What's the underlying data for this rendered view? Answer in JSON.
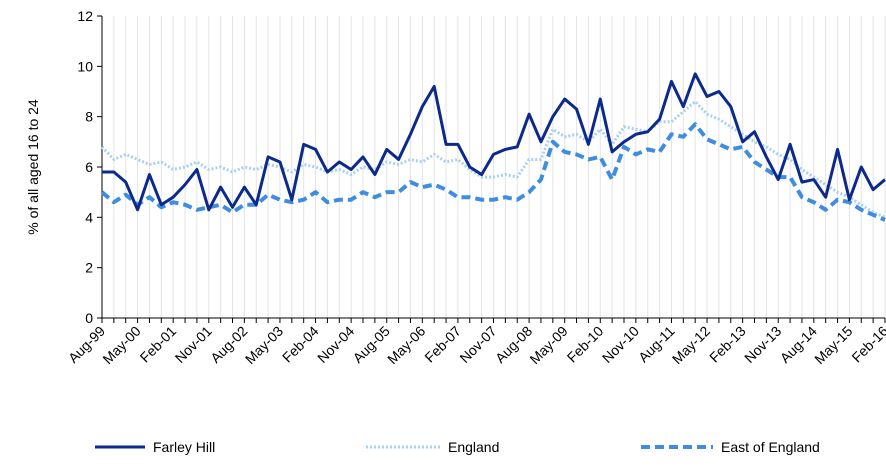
{
  "chart_data": {
    "type": "line",
    "ylabel": "% of all aged 16 to 24",
    "ylim": [
      0,
      12
    ],
    "yticks": [
      0,
      2,
      4,
      6,
      8,
      10,
      12
    ],
    "grid": "vertical",
    "legend_position": "bottom",
    "x_tick_labels": [
      "Aug-99",
      "May-00",
      "Feb-01",
      "Nov-01",
      "Aug-02",
      "May-03",
      "Feb-04",
      "Nov-04",
      "Aug-05",
      "May-06",
      "Feb-07",
      "Nov-07",
      "Aug-08",
      "May-09",
      "Feb-10",
      "Nov-10",
      "Aug-11",
      "May-12",
      "Feb-13",
      "Nov-13",
      "Aug-14",
      "May-15",
      "Feb-16"
    ],
    "x_start": "Aug-99",
    "x_end": "Feb-16",
    "x_frequency": "quarterly",
    "series": [
      {
        "name": "Farley Hill",
        "color": "#0b2a8c",
        "dash": "solid",
        "values": [
          5.8,
          5.8,
          5.4,
          4.3,
          5.7,
          4.5,
          4.8,
          5.3,
          5.9,
          4.3,
          5.2,
          4.4,
          5.2,
          4.5,
          6.4,
          6.2,
          4.7,
          6.9,
          6.7,
          5.8,
          6.2,
          5.9,
          6.4,
          5.7,
          6.7,
          6.3,
          7.3,
          8.4,
          9.2,
          6.9,
          6.9,
          6.0,
          5.7,
          6.5,
          6.7,
          6.8,
          8.1,
          7.0,
          8.0,
          8.7,
          8.3,
          6.9,
          8.7,
          6.6,
          7.0,
          7.3,
          7.4,
          7.9,
          9.4,
          8.4,
          9.7,
          8.8,
          9.0,
          8.4,
          7.0,
          7.4,
          6.4,
          5.5,
          6.9,
          5.4,
          5.5,
          4.8,
          6.7,
          4.7,
          6.0,
          5.1,
          5.5
        ]
      },
      {
        "name": "England",
        "color": "#a9d0f2",
        "dash": "dotted",
        "values": [
          6.8,
          6.3,
          6.5,
          6.3,
          6.1,
          6.2,
          5.9,
          6.0,
          6.2,
          5.9,
          6.0,
          5.8,
          6.0,
          5.9,
          6.1,
          6.0,
          5.8,
          6.1,
          6.0,
          5.8,
          5.9,
          5.7,
          6.0,
          5.9,
          6.2,
          6.1,
          6.3,
          6.2,
          6.5,
          6.2,
          6.3,
          5.9,
          5.6,
          5.6,
          5.7,
          5.6,
          6.3,
          6.3,
          7.5,
          7.2,
          7.3,
          7.0,
          7.5,
          6.9,
          7.6,
          7.5,
          7.4,
          7.8,
          7.8,
          8.2,
          8.6,
          8.1,
          7.9,
          7.6,
          7.3,
          7.0,
          6.8,
          6.5,
          6.3,
          5.9,
          5.6,
          5.3,
          5.0,
          4.8,
          4.5,
          4.2,
          4.0
        ]
      },
      {
        "name": "East of England",
        "color": "#3f8de0",
        "dash": "dashed",
        "values": [
          5.0,
          4.6,
          4.9,
          4.5,
          4.8,
          4.4,
          4.6,
          4.5,
          4.3,
          4.4,
          4.5,
          4.2,
          4.5,
          4.5,
          4.9,
          4.7,
          4.6,
          4.7,
          5.0,
          4.6,
          4.7,
          4.7,
          5.0,
          4.8,
          5.0,
          5.0,
          5.4,
          5.2,
          5.3,
          5.1,
          4.8,
          4.8,
          4.7,
          4.7,
          4.8,
          4.7,
          5.0,
          5.5,
          7.0,
          6.6,
          6.5,
          6.3,
          6.4,
          5.5,
          6.8,
          6.5,
          6.7,
          6.6,
          7.3,
          7.2,
          7.7,
          7.1,
          6.9,
          6.7,
          6.8,
          6.2,
          5.9,
          5.6,
          5.6,
          4.8,
          4.6,
          4.3,
          4.7,
          4.6,
          4.3,
          4.1,
          3.9
        ]
      }
    ]
  }
}
